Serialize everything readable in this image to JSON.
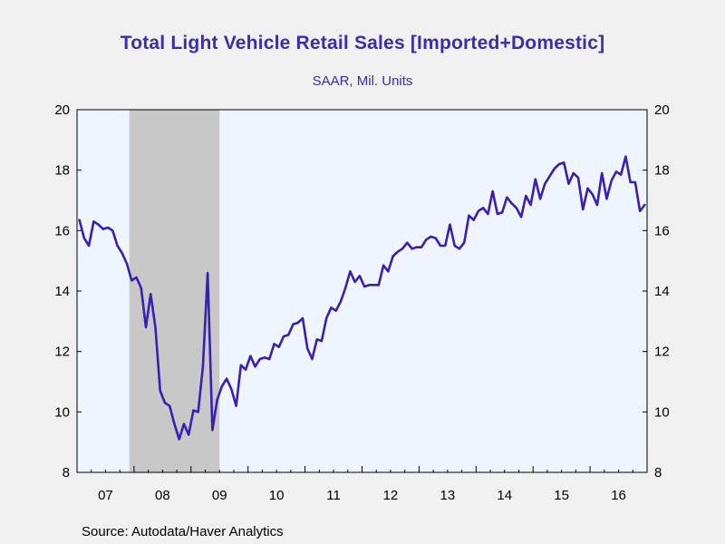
{
  "title": "Total Light Vehicle Retail Sales [Imported+Domestic]",
  "subtitle": "SAAR, Mil. Units",
  "source": "Source:  Autodata/Haver Analytics",
  "colors": {
    "line": "#3a1fb0",
    "plot_background": "#eef5ff",
    "recession_shade": "#c8c8c8",
    "title": "#3a2eaa",
    "page_background": "#f0f0f0"
  },
  "chart_data": {
    "type": "line",
    "title": "Total Light Vehicle Retail Sales [Imported+Domestic]",
    "subtitle": "SAAR, Mil. Units",
    "xlabel": "",
    "ylabel": "",
    "x_start": "2007-01",
    "x_end": "2016-12",
    "x_ticks": [
      "07",
      "08",
      "09",
      "10",
      "11",
      "12",
      "13",
      "14",
      "15",
      "16"
    ],
    "y_ticks": [
      8,
      10,
      12,
      14,
      16,
      18,
      20
    ],
    "ylim": [
      8,
      20
    ],
    "y_axis_both_sides": true,
    "grid": false,
    "legend": "none",
    "recession_shading": [
      {
        "start": "2007-12",
        "end": "2009-06"
      }
    ],
    "series": [
      {
        "values": [
          16.35,
          15.75,
          15.5,
          16.3,
          16.2,
          16.05,
          16.1,
          16.0,
          15.5,
          15.25,
          14.9,
          14.35,
          14.45,
          14.1,
          12.8,
          13.9,
          12.8,
          10.7,
          10.3,
          10.2,
          9.6,
          9.1,
          9.6,
          9.25,
          10.05,
          10.0,
          11.5,
          14.6,
          9.4,
          10.4,
          10.85,
          11.1,
          10.75,
          10.2,
          11.55,
          11.4,
          11.85,
          11.5,
          11.75,
          11.8,
          11.75,
          12.25,
          12.15,
          12.5,
          12.55,
          12.9,
          12.95,
          13.1,
          12.1,
          11.75,
          12.4,
          12.35,
          13.1,
          13.45,
          13.35,
          13.65,
          14.1,
          14.65,
          14.3,
          14.5,
          14.15,
          14.2,
          14.2,
          14.2,
          14.85,
          14.65,
          15.15,
          15.3,
          15.4,
          15.6,
          15.4,
          15.45,
          15.45,
          15.7,
          15.8,
          15.75,
          15.5,
          15.5,
          16.2,
          15.5,
          15.4,
          15.6,
          16.5,
          16.35,
          16.65,
          16.75,
          16.55,
          17.3,
          16.55,
          16.6,
          17.1,
          16.9,
          16.75,
          16.45,
          17.15,
          16.85,
          17.7,
          17.05,
          17.55,
          17.8,
          18.05,
          18.2,
          18.25,
          17.55,
          17.9,
          17.75,
          16.7,
          17.4,
          17.2,
          16.85,
          17.9,
          17.05,
          17.65,
          17.95,
          17.85,
          18.45,
          17.6,
          17.6,
          16.65,
          16.85
        ]
      }
    ]
  }
}
